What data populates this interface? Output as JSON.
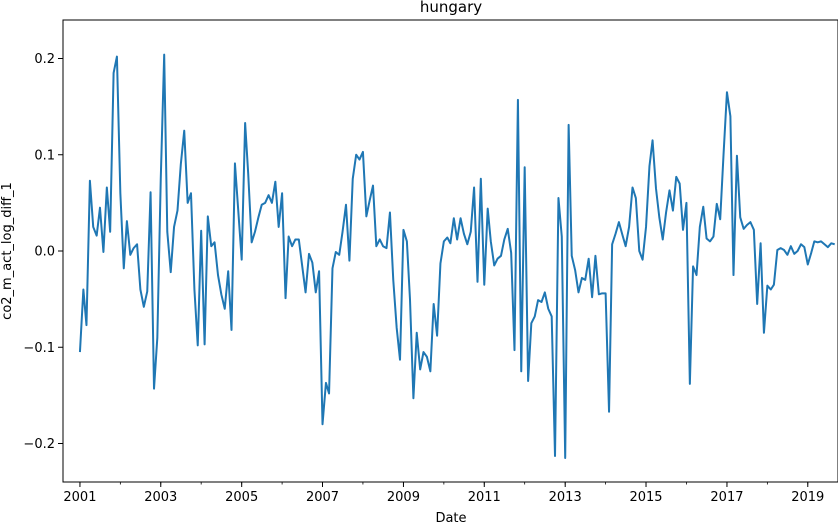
{
  "chart_data": {
    "type": "line",
    "title": "hungary",
    "xlabel": "Date",
    "ylabel": "co2_m_act_log_diff_1",
    "xlim": [
      "2000-08-01",
      "2019-10-01"
    ],
    "ylim": [
      -0.24,
      0.24
    ],
    "x_ticks": [
      {
        "date": "2001-01-01",
        "label": "2001"
      },
      {
        "date": "2003-01-01",
        "label": "2003"
      },
      {
        "date": "2005-01-01",
        "label": "2005"
      },
      {
        "date": "2007-01-01",
        "label": "2007"
      },
      {
        "date": "2009-01-01",
        "label": "2009"
      },
      {
        "date": "2011-01-01",
        "label": "2011"
      },
      {
        "date": "2013-01-01",
        "label": "2013"
      },
      {
        "date": "2015-01-01",
        "label": "2015"
      },
      {
        "date": "2017-01-01",
        "label": "2017"
      },
      {
        "date": "2019-01-01",
        "label": "2019"
      }
    ],
    "y_ticks": [
      {
        "value": 0.2,
        "label": "0.2"
      },
      {
        "value": 0.1,
        "label": "0.1"
      },
      {
        "value": 0.0,
        "label": "0.0"
      },
      {
        "value": -0.1,
        "label": "−0.1"
      },
      {
        "value": -0.2,
        "label": "−0.2"
      }
    ],
    "grid": false,
    "series": [
      {
        "color": "#1f77b4",
        "start": "2001-01",
        "frequency": "monthly",
        "values": [
          -0.105,
          -0.04,
          -0.077,
          0.073,
          0.025,
          0.016,
          0.045,
          -0.001,
          0.066,
          0.02,
          0.185,
          0.202,
          0.06,
          -0.018,
          0.031,
          -0.004,
          0.003,
          0.007,
          -0.04,
          -0.058,
          -0.042,
          0.061,
          -0.143,
          -0.09,
          0.075,
          0.204,
          0.02,
          -0.022,
          0.025,
          0.042,
          0.09,
          0.125,
          0.05,
          0.06,
          -0.04,
          -0.098,
          0.021,
          -0.097,
          0.036,
          0.005,
          0.009,
          -0.025,
          -0.045,
          -0.06,
          -0.021,
          -0.082,
          0.091,
          0.042,
          -0.009,
          0.133,
          0.08,
          0.009,
          0.02,
          0.035,
          0.048,
          0.05,
          0.058,
          0.05,
          0.072,
          0.025,
          0.06,
          -0.049,
          0.015,
          0.005,
          0.012,
          0.012,
          -0.015,
          -0.043,
          -0.003,
          -0.012,
          -0.043,
          -0.021,
          -0.18,
          -0.137,
          -0.148,
          -0.018,
          -0.001,
          -0.004,
          0.02,
          0.048,
          -0.01,
          0.075,
          0.1,
          0.095,
          0.103,
          0.036,
          0.052,
          0.068,
          0.005,
          0.012,
          0.005,
          0.003,
          0.04,
          -0.03,
          -0.08,
          -0.113,
          0.022,
          0.01,
          -0.05,
          -0.153,
          -0.085,
          -0.123,
          -0.105,
          -0.11,
          -0.125,
          -0.055,
          -0.088,
          -0.013,
          0.01,
          0.014,
          0.008,
          0.034,
          0.012,
          0.034,
          0.018,
          0.007,
          0.02,
          0.066,
          -0.032,
          0.075,
          -0.035,
          0.044,
          0.01,
          -0.015,
          -0.008,
          -0.005,
          0.012,
          0.023,
          -0.002,
          -0.103,
          0.157,
          -0.125,
          0.087,
          -0.135,
          -0.075,
          -0.068,
          -0.051,
          -0.053,
          -0.043,
          -0.06,
          -0.068,
          -0.213,
          0.055,
          0.015,
          -0.215,
          0.131,
          -0.005,
          -0.02,
          -0.043,
          -0.028,
          -0.03,
          -0.008,
          -0.048,
          -0.005,
          -0.045,
          -0.044,
          -0.044,
          -0.167,
          0.007,
          0.018,
          0.03,
          0.017,
          0.005,
          0.025,
          0.066,
          0.055,
          0.0,
          -0.009,
          0.025,
          0.088,
          0.115,
          0.065,
          0.035,
          0.012,
          0.04,
          0.063,
          0.042,
          0.077,
          0.07,
          0.022,
          0.05,
          -0.138,
          -0.016,
          -0.025,
          0.025,
          0.046,
          0.013,
          0.01,
          0.015,
          0.049,
          0.033,
          0.1,
          0.165,
          0.14,
          -0.025,
          0.099,
          0.035,
          0.023,
          0.027,
          0.03,
          0.022,
          -0.055,
          0.008,
          -0.085,
          -0.036,
          -0.04,
          -0.035,
          0.001,
          0.003,
          0.001,
          -0.004,
          0.005,
          -0.003,
          0.0,
          0.007,
          0.004,
          -0.014,
          -0.002,
          0.01,
          0.009,
          0.01,
          0.007,
          0.004,
          0.008,
          0.007
        ]
      }
    ]
  }
}
